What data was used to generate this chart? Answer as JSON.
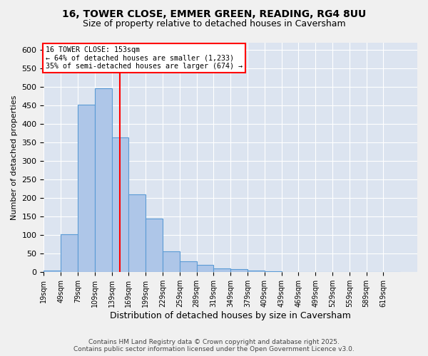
{
  "title_line1": "16, TOWER CLOSE, EMMER GREEN, READING, RG4 8UU",
  "title_line2": "Size of property relative to detached houses in Caversham",
  "xlabel": "Distribution of detached houses by size in Caversham",
  "ylabel": "Number of detached properties",
  "x_labels": [
    "19sqm",
    "49sqm",
    "79sqm",
    "109sqm",
    "139sqm",
    "169sqm",
    "199sqm",
    "229sqm",
    "259sqm",
    "289sqm",
    "319sqm",
    "349sqm",
    "379sqm",
    "409sqm",
    "439sqm",
    "469sqm",
    "499sqm",
    "529sqm",
    "559sqm",
    "589sqm",
    "619sqm"
  ],
  "bar_color": "#aec6e8",
  "bar_edge_color": "#5b9bd5",
  "vline_color": "red",
  "annotation_text": "16 TOWER CLOSE: 153sqm\n← 64% of detached houses are smaller (1,233)\n35% of semi-detached houses are larger (674) →",
  "background_color": "#dce4f0",
  "fig_background": "#f0f0f0",
  "ylim": [
    0,
    620
  ],
  "yticks": [
    0,
    50,
    100,
    150,
    200,
    250,
    300,
    350,
    400,
    450,
    500,
    550,
    600
  ],
  "footer_line1": "Contains HM Land Registry data © Crown copyright and database right 2025.",
  "footer_line2": "Contains public sector information licensed under the Open Government Licence v3.0.",
  "bin_edges": [
    19,
    49,
    79,
    109,
    139,
    169,
    199,
    229,
    259,
    289,
    319,
    349,
    379,
    409,
    439,
    469,
    499,
    529,
    559,
    589,
    619,
    649
  ],
  "hist_values": [
    5,
    103,
    453,
    497,
    365,
    210,
    145,
    57,
    30,
    20,
    11,
    8,
    5,
    2,
    1,
    1,
    0,
    0,
    0,
    0,
    0
  ]
}
